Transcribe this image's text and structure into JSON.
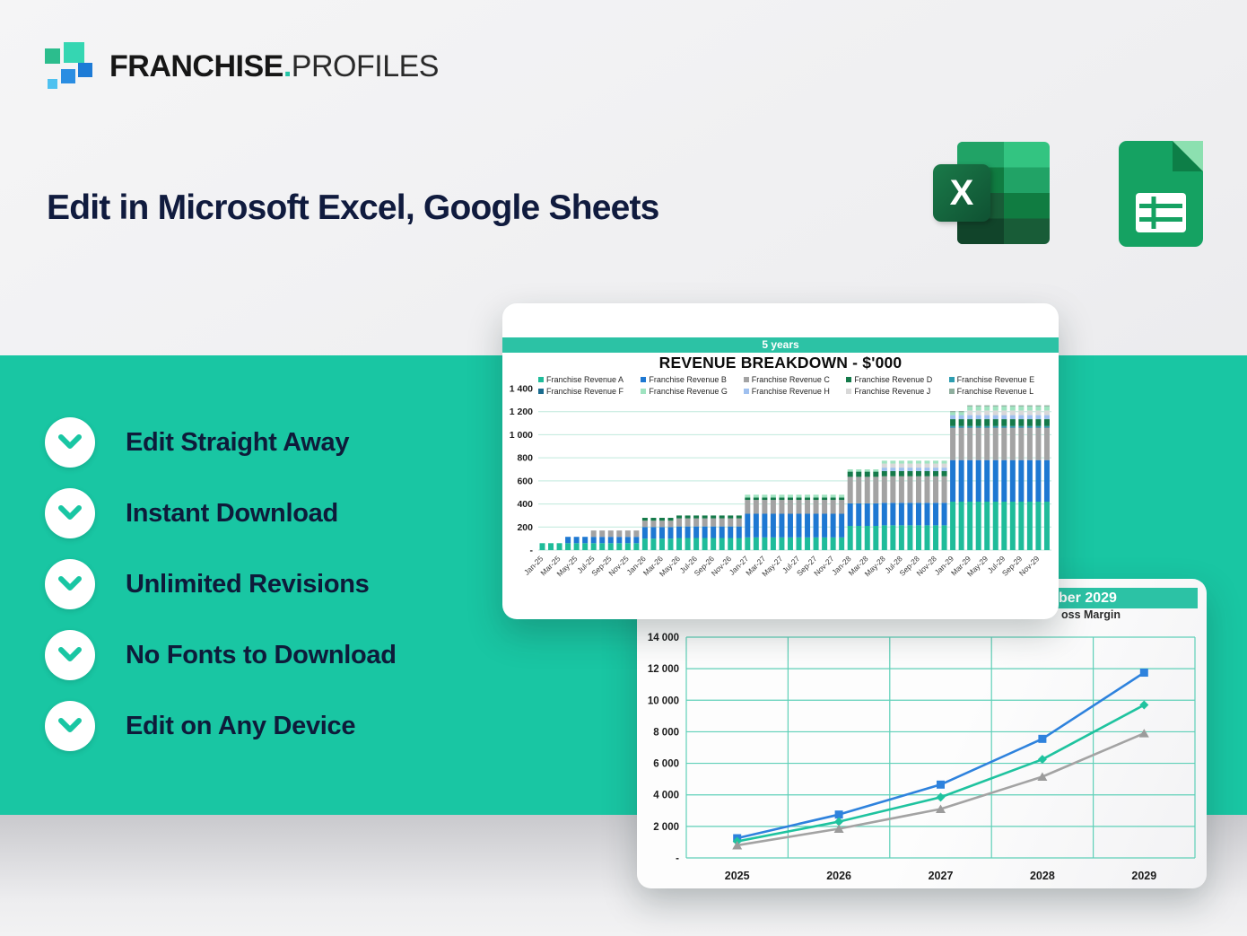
{
  "brand": {
    "bold": "FRANCHISE",
    "dot": ".",
    "light": "PROFILES"
  },
  "heading": {
    "text": "Edit in Microsoft Excel, Google Sheets"
  },
  "app_icons": {
    "excel_letter": "X"
  },
  "colors": {
    "teal_band": "#19c6a3",
    "card_header_bar": "#2cc2a5",
    "navy_text": "#0e1b3a",
    "grid_line_bar_chart": "#bfe9dc",
    "grid_line_line_chart": "#5fd0b8"
  },
  "checklist": [
    "Edit Straight Away",
    "Instant Download",
    "Unlimited Revisions",
    "No Fonts to Download",
    "Edit on Any Device"
  ],
  "chart_data": [
    {
      "type": "bar",
      "stacked": true,
      "tab_label": "5 years",
      "title": "REVENUE BREAKDOWN - $'000",
      "ylim": [
        0,
        1400
      ],
      "ytick_labels": [
        "-",
        "200",
        "400",
        "600",
        "800",
        "1 000",
        "1 200",
        "1 400"
      ],
      "x_labels": [
        "Jan-25",
        "Mar-25",
        "May-25",
        "Jul-25",
        "Sep-25",
        "Nov-25",
        "Jan-26",
        "Mar-26",
        "May-26",
        "Jul-26",
        "Sep-26",
        "Nov-26",
        "Jan-27",
        "Mar-27",
        "May-27",
        "Jul-27",
        "Sep-27",
        "Nov-27",
        "Jan-28",
        "Mar-28",
        "May-28",
        "Jul-28",
        "Sep-28",
        "Nov-28",
        "Jan-29",
        "Mar-29",
        "May-29",
        "Jul-29",
        "Sep-29",
        "Nov-29"
      ],
      "legend_position": "top",
      "grid": "horizontal",
      "stack_order": [
        "Franchise Revenue A",
        "Franchise Revenue B",
        "Franchise Revenue C",
        "Franchise Revenue F",
        "Franchise Revenue E",
        "Franchise Revenue D",
        "Franchise Revenue H",
        "Franchise Revenue J",
        "Franchise Revenue G",
        "Franchise Revenue L"
      ],
      "series": [
        {
          "name": "Franchise Revenue A",
          "color": "#1fbc9a",
          "values": [
            60,
            60,
            60,
            60,
            60,
            60,
            60,
            60,
            60,
            60,
            60,
            60,
            100,
            100,
            100,
            100,
            105,
            105,
            105,
            105,
            105,
            105,
            105,
            105,
            110,
            110,
            110,
            110,
            110,
            110,
            110,
            110,
            110,
            110,
            110,
            110,
            210,
            210,
            210,
            210,
            215,
            215,
            215,
            215,
            215,
            215,
            215,
            215,
            420,
            420,
            420,
            420,
            420,
            420,
            420,
            420,
            420,
            420,
            420,
            420
          ]
        },
        {
          "name": "Franchise Revenue B",
          "color": "#1e78d2",
          "values": [
            0,
            0,
            0,
            55,
            55,
            55,
            55,
            55,
            55,
            55,
            55,
            55,
            100,
            100,
            100,
            100,
            100,
            100,
            100,
            100,
            100,
            100,
            100,
            100,
            205,
            205,
            205,
            205,
            205,
            205,
            205,
            205,
            205,
            205,
            205,
            205,
            195,
            195,
            195,
            195,
            195,
            195,
            195,
            195,
            195,
            195,
            195,
            195,
            360,
            360,
            360,
            360,
            360,
            360,
            360,
            360,
            360,
            360,
            360,
            360
          ]
        },
        {
          "name": "Franchise Revenue C",
          "color": "#a3a3a3",
          "values": [
            0,
            0,
            0,
            0,
            0,
            0,
            55,
            55,
            55,
            55,
            55,
            55,
            55,
            55,
            55,
            55,
            70,
            70,
            70,
            70,
            70,
            70,
            70,
            70,
            120,
            120,
            120,
            120,
            120,
            120,
            120,
            120,
            120,
            120,
            120,
            120,
            230,
            230,
            230,
            230,
            230,
            230,
            230,
            230,
            230,
            230,
            230,
            230,
            280,
            280,
            280,
            280,
            280,
            280,
            280,
            280,
            280,
            280,
            280,
            280
          ]
        },
        {
          "name": "Franchise Revenue D",
          "color": "#157a4a",
          "values": [
            0,
            0,
            0,
            0,
            0,
            0,
            0,
            0,
            0,
            0,
            0,
            0,
            25,
            25,
            25,
            25,
            25,
            25,
            25,
            25,
            25,
            25,
            25,
            25,
            20,
            20,
            20,
            20,
            20,
            20,
            20,
            20,
            20,
            20,
            20,
            20,
            45,
            45,
            45,
            45,
            45,
            45,
            45,
            45,
            45,
            45,
            45,
            45,
            60,
            60,
            60,
            60,
            60,
            60,
            60,
            60,
            60,
            60,
            60,
            60
          ]
        },
        {
          "name": "Franchise Revenue E",
          "color": "#2d9db0",
          "values": [
            0,
            0,
            0,
            0,
            0,
            0,
            0,
            0,
            0,
            0,
            0,
            0,
            0,
            0,
            0,
            0,
            0,
            0,
            0,
            0,
            0,
            0,
            0,
            0,
            0,
            0,
            0,
            0,
            0,
            0,
            0,
            0,
            0,
            0,
            0,
            0,
            0,
            0,
            0,
            0,
            0,
            0,
            0,
            0,
            0,
            0,
            0,
            0,
            10,
            10,
            10,
            10,
            10,
            10,
            10,
            10,
            10,
            10,
            10,
            10
          ]
        },
        {
          "name": "Franchise Revenue F",
          "color": "#1b6c8f",
          "values": [
            0,
            0,
            0,
            0,
            0,
            0,
            0,
            0,
            0,
            0,
            0,
            0,
            0,
            0,
            0,
            0,
            0,
            0,
            0,
            0,
            0,
            0,
            0,
            0,
            0,
            0,
            0,
            0,
            0,
            0,
            0,
            0,
            0,
            0,
            0,
            0,
            0,
            0,
            0,
            0,
            0,
            0,
            0,
            0,
            0,
            0,
            0,
            0,
            5,
            5,
            5,
            5,
            5,
            5,
            5,
            5,
            5,
            5,
            5,
            5
          ]
        },
        {
          "name": "Franchise Revenue G",
          "color": "#9fe3c0",
          "values": [
            0,
            0,
            0,
            0,
            0,
            0,
            0,
            0,
            0,
            0,
            0,
            0,
            0,
            0,
            0,
            0,
            0,
            0,
            0,
            0,
            0,
            0,
            0,
            0,
            25,
            25,
            25,
            25,
            25,
            25,
            25,
            25,
            25,
            25,
            25,
            25,
            20,
            20,
            20,
            20,
            25,
            25,
            25,
            25,
            25,
            25,
            25,
            25,
            25,
            25,
            35,
            35,
            35,
            35,
            35,
            35,
            35,
            35,
            35,
            35
          ]
        },
        {
          "name": "Franchise Revenue H",
          "color": "#9fc0ef",
          "values": [
            0,
            0,
            0,
            0,
            0,
            0,
            0,
            0,
            0,
            0,
            0,
            0,
            0,
            0,
            0,
            0,
            0,
            0,
            0,
            0,
            0,
            0,
            0,
            0,
            0,
            0,
            0,
            0,
            0,
            0,
            0,
            0,
            0,
            0,
            0,
            0,
            0,
            0,
            0,
            0,
            30,
            30,
            30,
            30,
            30,
            30,
            30,
            30,
            35,
            35,
            35,
            35,
            35,
            35,
            35,
            35,
            35,
            35,
            35,
            35
          ]
        },
        {
          "name": "Franchise Revenue J",
          "color": "#d8d8d8",
          "values": [
            0,
            0,
            0,
            0,
            0,
            0,
            0,
            0,
            0,
            0,
            0,
            0,
            0,
            0,
            0,
            0,
            0,
            0,
            0,
            0,
            0,
            0,
            0,
            0,
            0,
            0,
            0,
            0,
            0,
            0,
            0,
            0,
            0,
            0,
            0,
            0,
            0,
            0,
            0,
            0,
            35,
            35,
            35,
            35,
            35,
            35,
            35,
            35,
            0,
            0,
            40,
            40,
            40,
            40,
            40,
            40,
            40,
            40,
            40,
            40
          ]
        },
        {
          "name": "Franchise Revenue L",
          "color": "#8fae9e",
          "values": [
            0,
            0,
            0,
            0,
            0,
            0,
            0,
            0,
            0,
            0,
            0,
            0,
            0,
            0,
            0,
            0,
            0,
            0,
            0,
            0,
            0,
            0,
            0,
            0,
            0,
            0,
            0,
            0,
            0,
            0,
            0,
            0,
            0,
            0,
            0,
            0,
            0,
            0,
            0,
            0,
            0,
            0,
            0,
            0,
            0,
            0,
            0,
            0,
            10,
            10,
            10,
            10,
            10,
            10,
            10,
            10,
            10,
            10,
            10,
            10
          ]
        }
      ]
    },
    {
      "type": "line",
      "header_visible": "ber 2029",
      "legend_visible": "oss Margin",
      "categories": [
        "2025",
        "2026",
        "2027",
        "2028",
        "2029"
      ],
      "ylim": [
        0,
        14000
      ],
      "ytick_labels": [
        "-",
        "2 000",
        "4 000",
        "6 000",
        "8 000",
        "10 000",
        "12 000",
        "14 000"
      ],
      "grid": "both",
      "series": [
        {
          "name": "revenue-line",
          "marker": "square",
          "color": "#2e82dd",
          "values": [
            1250,
            2750,
            4650,
            7550,
            11750
          ]
        },
        {
          "name": "gross-margin-line",
          "marker": "diamond",
          "color": "#1fc39f",
          "values": [
            1050,
            2300,
            3850,
            6250,
            9700
          ]
        },
        {
          "name": "net-line",
          "marker": "triangle",
          "color": "#a3a3a3",
          "values": [
            800,
            1850,
            3100,
            5150,
            7900
          ]
        }
      ]
    }
  ]
}
